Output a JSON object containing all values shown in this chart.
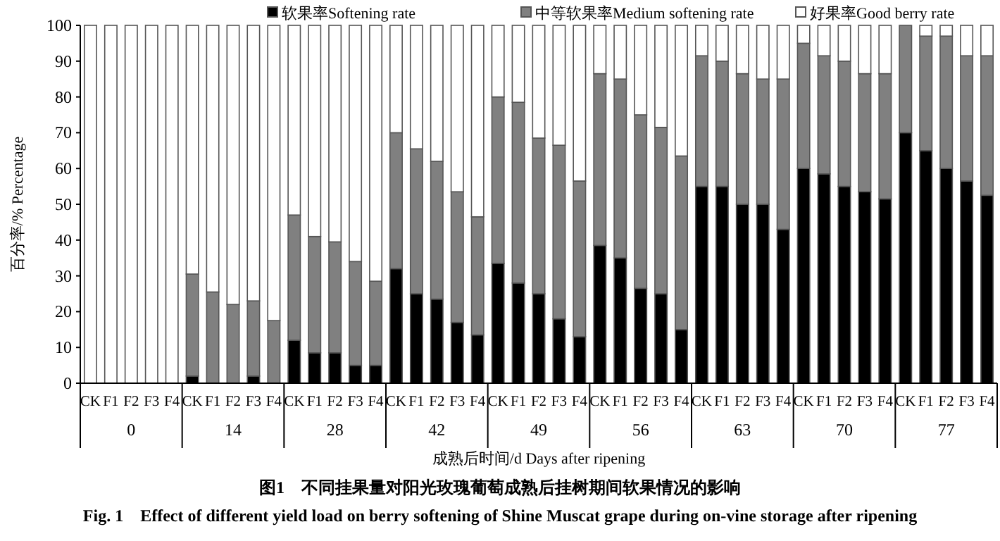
{
  "chart_data": {
    "type": "bar",
    "stacked": true,
    "legend": "top",
    "ylabel": "百分率/% Percentage",
    "xlabel": "成熟后时间/d Days after ripening",
    "ylim": [
      0,
      100
    ],
    "yticks": [
      0,
      10,
      20,
      30,
      40,
      50,
      60,
      70,
      80,
      90,
      100
    ],
    "categories": [
      "CK",
      "F1",
      "F2",
      "F3",
      "F4",
      "CK",
      "F1",
      "F2",
      "F3",
      "F4",
      "CK",
      "F1",
      "F2",
      "F3",
      "F4",
      "CK",
      "F1",
      "F2",
      "F3",
      "F4",
      "CK",
      "F1",
      "F2",
      "F3",
      "F4",
      "CK",
      "F1",
      "F2",
      "F3",
      "F4",
      "CK",
      "F1",
      "F2",
      "F3",
      "F4",
      "CK",
      "F1",
      "F2",
      "F3",
      "F4",
      "CK",
      "F1",
      "F2",
      "F3",
      "F4"
    ],
    "series": [
      {
        "name": "软果率Softening rate",
        "color": "#000000",
        "values": [
          0,
          0,
          0,
          0,
          0,
          2,
          0,
          0,
          2,
          0,
          12,
          8.5,
          8.5,
          5,
          5,
          32,
          25,
          23.5,
          17,
          13.5,
          33.5,
          28,
          25,
          18,
          13,
          38.5,
          35,
          26.5,
          25,
          15,
          55,
          55,
          50,
          50,
          43,
          60,
          58.5,
          55,
          53.5,
          51.5,
          70,
          65,
          60,
          56.5,
          52.5
        ]
      },
      {
        "name": "中等软果率Medium softening rate",
        "color": "#808080",
        "values": [
          0,
          0,
          0,
          0,
          0,
          28.5,
          25.5,
          22,
          21,
          17.5,
          35,
          32.5,
          31,
          29,
          23.5,
          38,
          40.5,
          38.5,
          36.5,
          33,
          46.5,
          50.5,
          43.5,
          48.5,
          43.5,
          48,
          50,
          48.5,
          46.5,
          48.5,
          36.5,
          35,
          36.5,
          35,
          42,
          35,
          33,
          35,
          33,
          35,
          30,
          32,
          37,
          35,
          39
        ]
      },
      {
        "name": "好果率Good berry rate",
        "color": "#ffffff",
        "values": [
          100,
          100,
          100,
          100,
          100,
          69.5,
          74.5,
          78,
          77,
          82.5,
          53,
          59,
          60.5,
          66,
          71.5,
          30,
          34.5,
          38,
          46.5,
          53.5,
          20,
          21.5,
          31.5,
          33.5,
          43.5,
          13.5,
          15,
          25,
          28.5,
          36.5,
          8.5,
          10,
          13.5,
          15,
          15,
          5,
          8.5,
          10,
          13.5,
          13.5,
          0,
          3,
          3,
          8.5,
          8.5
        ]
      }
    ],
    "annotations": [
      "0",
      "14",
      "28",
      "42",
      "49",
      "56",
      "63",
      "70",
      "77",
      "图1　不同挂果量对阳光玫瑰葡萄成熟后挂树期间软果情况的影响",
      "Fig. 1　Effect of different yield load on berry softening of Shine Muscat grape during on-vine storage after ripening"
    ]
  }
}
